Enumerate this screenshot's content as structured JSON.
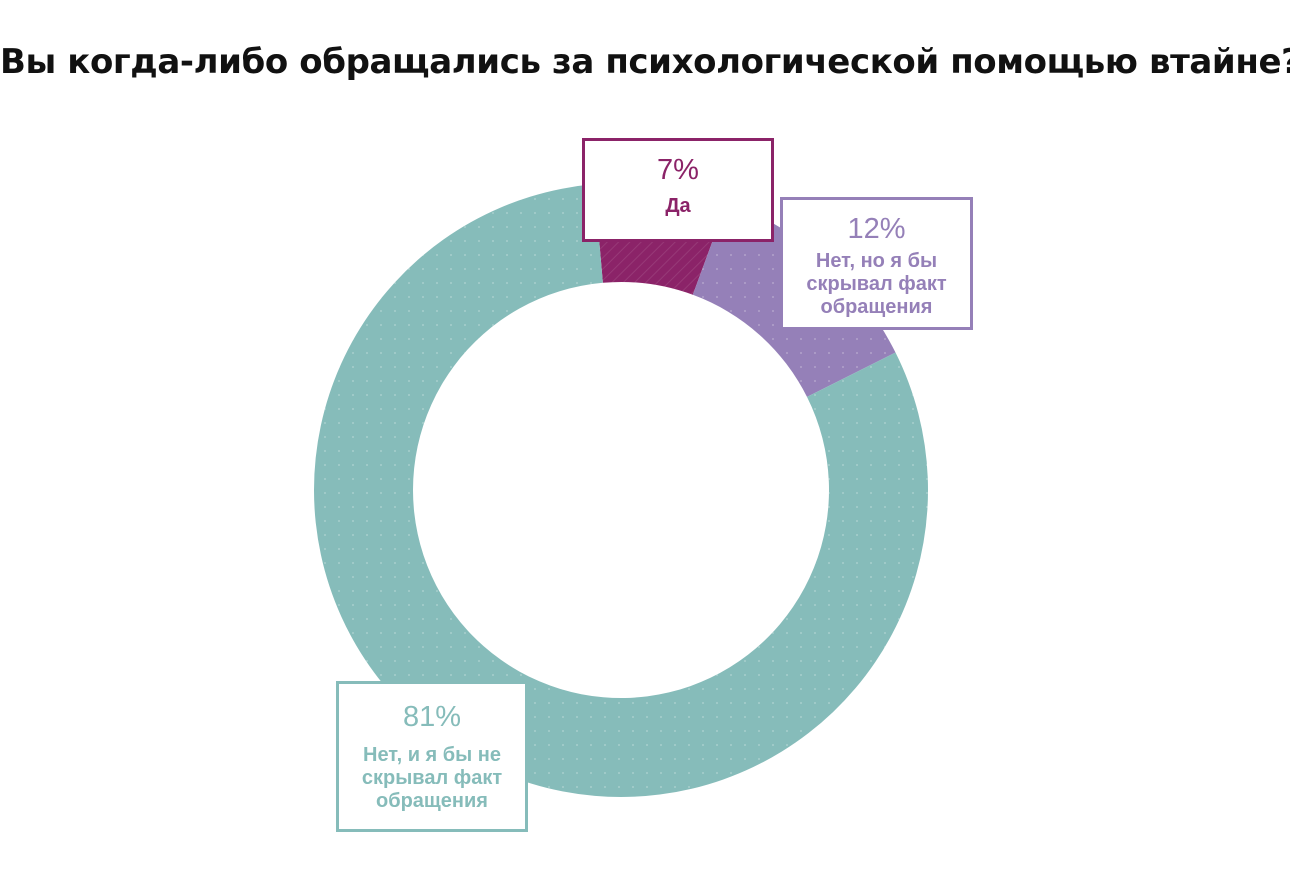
{
  "chart_data": {
    "type": "pie",
    "donut": true,
    "title": "Вы когда-либо обращались за психологической помощью втайне?",
    "start_angle_deg": -5,
    "slices": [
      {
        "key": "da",
        "label": "Да",
        "value": 7,
        "percent_label": "7%",
        "color": "#8b2368"
      },
      {
        "key": "no_hide",
        "label": "Нет, но я бы скрывал факт обращения",
        "value": 12,
        "percent_label": "12%",
        "color": "#9580b8"
      },
      {
        "key": "no_nohide",
        "label": "Нет, и я бы не скрывал факт обращения",
        "value": 81,
        "percent_label": "81%",
        "color": "#86bcba"
      }
    ]
  }
}
